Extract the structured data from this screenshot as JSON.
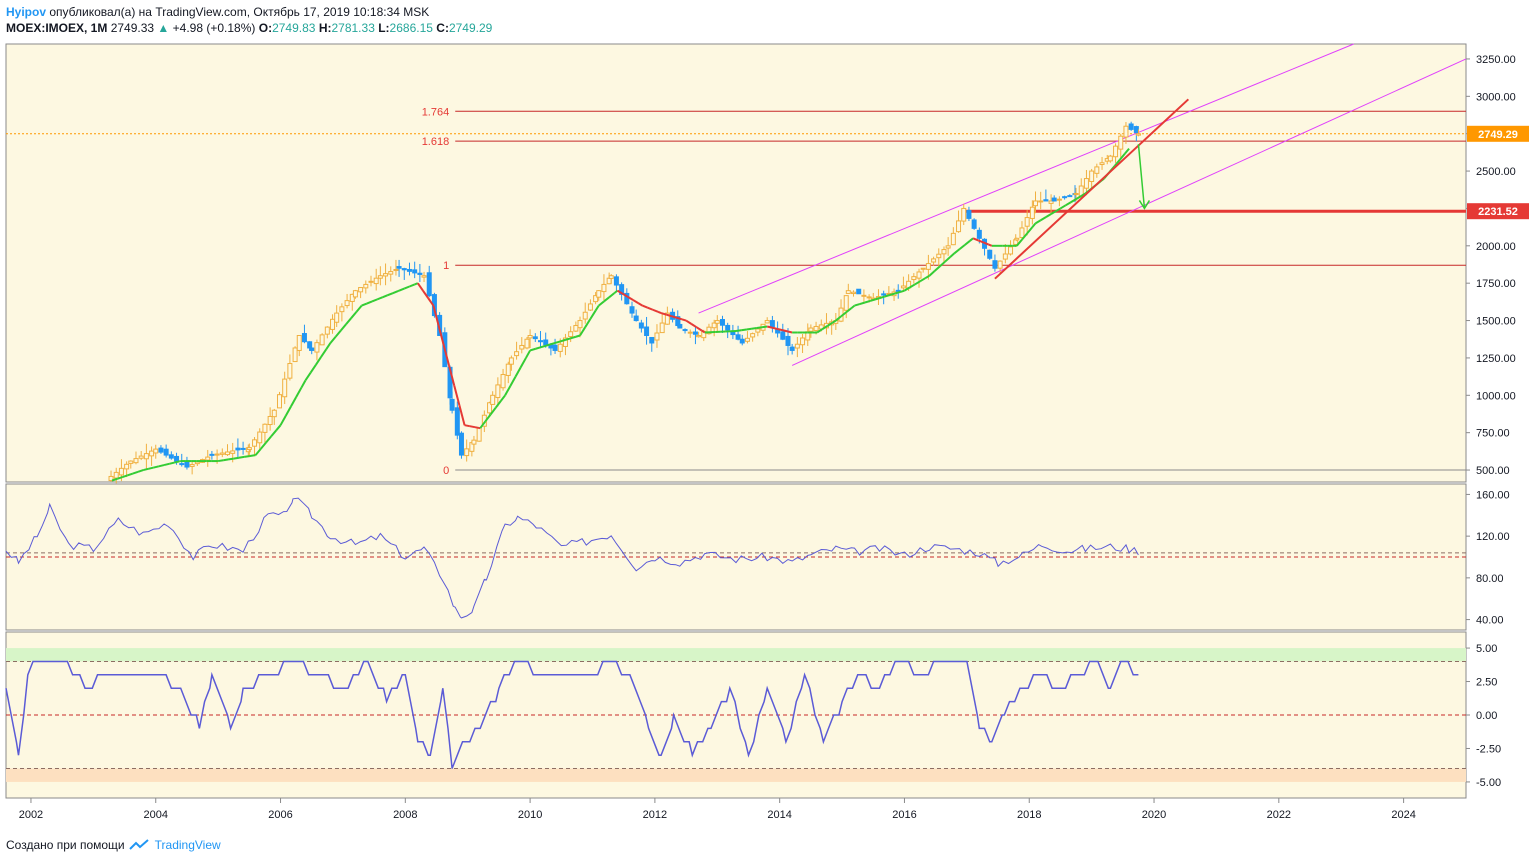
{
  "header": {
    "author": "Hyipov",
    "published_text": "опубликовал(а) на TradingView.com, Октябрь 17, 2019 10:18:34 MSK",
    "symbol": "MOEX:IMOEX, 1M",
    "last": "2749.33",
    "change": "+4.98 (+0.18%)",
    "o_label": "O:",
    "o_value": "2749.83",
    "h_label": "H:",
    "h_value": "2781.33",
    "l_label": "L:",
    "l_value": "2686.15",
    "c_label": "C:",
    "c_value": "2749.29"
  },
  "footer": {
    "created_with": "Создано при помощи",
    "brand": "TradingView"
  },
  "colors": {
    "panel_bg": "#fdf8e1",
    "bull": "#f0b040",
    "bear": "#2196f3",
    "ma_green": "#33cc33",
    "ma_red": "#e53935",
    "fib": "#c62828",
    "channel": "#e040fb",
    "indicator": "#5b5bd6",
    "price_tag": "#ff9800",
    "level_tag": "#e53935"
  },
  "chart_data": [
    {
      "type": "candlestick",
      "panel": "price",
      "x_range": [
        2001.6,
        2025.0
      ],
      "ylim": [
        420,
        3350
      ],
      "y_ticks": [
        500,
        750,
        1000,
        1250,
        1500,
        1750,
        2000,
        2250,
        2500,
        2750,
        3000,
        3250
      ],
      "y_tick_labels": [
        "500.00",
        "750.00",
        "1000.00",
        "1250.00",
        "1500.00",
        "1750.00",
        "2000.00",
        "2250.00",
        "2500.00",
        "2750.00",
        "3000.00",
        "3250.00"
      ],
      "x_ticks": [
        2002,
        2004,
        2006,
        2008,
        2010,
        2012,
        2014,
        2016,
        2018,
        2020,
        2022,
        2024
      ],
      "x_tick_labels": [
        "2002",
        "2004",
        "2006",
        "2008",
        "2010",
        "2012",
        "2014",
        "2016",
        "2018",
        "2020",
        "2022",
        "2024"
      ],
      "anchors": [
        [
          2003.2,
          430
        ],
        [
          2003.6,
          560
        ],
        [
          2004.0,
          640
        ],
        [
          2004.5,
          520
        ],
        [
          2004.9,
          600
        ],
        [
          2005.5,
          650
        ],
        [
          2005.9,
          900
        ],
        [
          2006.3,
          1400
        ],
        [
          2006.5,
          1300
        ],
        [
          2006.9,
          1550
        ],
        [
          2007.2,
          1700
        ],
        [
          2007.6,
          1800
        ],
        [
          2007.9,
          1850
        ],
        [
          2008.3,
          1800
        ],
        [
          2008.55,
          1400
        ],
        [
          2008.75,
          900
        ],
        [
          2008.9,
          600
        ],
        [
          2009.1,
          700
        ],
        [
          2009.4,
          1000
        ],
        [
          2009.7,
          1250
        ],
        [
          2010.0,
          1400
        ],
        [
          2010.4,
          1300
        ],
        [
          2010.8,
          1500
        ],
        [
          2011.1,
          1700
        ],
        [
          2011.3,
          1800
        ],
        [
          2011.7,
          1500
        ],
        [
          2011.95,
          1350
        ],
        [
          2012.2,
          1550
        ],
        [
          2012.4,
          1450
        ],
        [
          2012.7,
          1400
        ],
        [
          2013.0,
          1500
        ],
        [
          2013.4,
          1350
        ],
        [
          2013.8,
          1500
        ],
        [
          2014.2,
          1300
        ],
        [
          2014.5,
          1450
        ],
        [
          2014.9,
          1500
        ],
        [
          2015.1,
          1700
        ],
        [
          2015.5,
          1650
        ],
        [
          2015.9,
          1700
        ],
        [
          2016.3,
          1850
        ],
        [
          2016.7,
          2000
        ],
        [
          2016.95,
          2250
        ],
        [
          2017.2,
          2050
        ],
        [
          2017.45,
          1850
        ],
        [
          2017.8,
          2050
        ],
        [
          2018.1,
          2300
        ],
        [
          2018.4,
          2300
        ],
        [
          2018.75,
          2350
        ],
        [
          2019.0,
          2500
        ],
        [
          2019.3,
          2600
        ],
        [
          2019.55,
          2800
        ],
        [
          2019.75,
          2749
        ]
      ],
      "moving_average": [
        [
          2003.3,
          430
        ],
        [
          2003.8,
          500
        ],
        [
          2004.4,
          560
        ],
        [
          2005.0,
          560
        ],
        [
          2005.6,
          600
        ],
        [
          2006.0,
          800
        ],
        [
          2006.4,
          1100
        ],
        [
          2006.8,
          1350
        ],
        [
          2007.3,
          1600
        ],
        [
          2007.9,
          1700
        ],
        [
          2008.2,
          1750
        ],
        [
          2008.45,
          1600
        ],
        [
          2008.7,
          1200
        ],
        [
          2008.95,
          800
        ],
        [
          2009.2,
          780
        ],
        [
          2009.6,
          1000
        ],
        [
          2010.0,
          1300
        ],
        [
          2010.4,
          1350
        ],
        [
          2010.8,
          1400
        ],
        [
          2011.1,
          1600
        ],
        [
          2011.4,
          1700
        ],
        [
          2011.8,
          1600
        ],
        [
          2012.1,
          1550
        ],
        [
          2012.5,
          1500
        ],
        [
          2012.8,
          1420
        ],
        [
          2013.3,
          1430
        ],
        [
          2013.8,
          1460
        ],
        [
          2014.2,
          1420
        ],
        [
          2014.6,
          1420
        ],
        [
          2014.9,
          1500
        ],
        [
          2015.2,
          1600
        ],
        [
          2015.6,
          1650
        ],
        [
          2016.0,
          1700
        ],
        [
          2016.4,
          1800
        ],
        [
          2016.8,
          1950
        ],
        [
          2017.1,
          2050
        ],
        [
          2017.4,
          2000
        ],
        [
          2017.8,
          2000
        ],
        [
          2018.1,
          2150
        ],
        [
          2018.5,
          2250
        ],
        [
          2018.9,
          2350
        ],
        [
          2019.2,
          2450
        ],
        [
          2019.6,
          2650
        ]
      ],
      "fib_levels": [
        {
          "label": "0",
          "value": 500
        },
        {
          "label": "1",
          "value": 1870
        },
        {
          "label": "1.618",
          "value": 2700
        },
        {
          "label": "1.764",
          "value": 2900
        }
      ],
      "horizontal_level": {
        "value": 2231.52,
        "label": "2231.52"
      },
      "last_price": {
        "value": 2749.29,
        "label": "2749.29"
      }
    },
    {
      "type": "line",
      "panel": "oscillator_1",
      "ylim": [
        30,
        170
      ],
      "y_ticks": [
        40,
        80,
        120,
        160
      ],
      "y_tick_labels": [
        "40.00",
        "80.00",
        "120.00",
        "160.00"
      ],
      "dashed_levels": [
        100,
        104
      ],
      "anchors": [
        [
          2001.6,
          107
        ],
        [
          2001.8,
          95
        ],
        [
          2002.1,
          120
        ],
        [
          2002.3,
          147
        ],
        [
          2002.6,
          112
        ],
        [
          2003.0,
          108
        ],
        [
          2003.4,
          135
        ],
        [
          2003.8,
          122
        ],
        [
          2004.2,
          133
        ],
        [
          2004.6,
          100
        ],
        [
          2004.9,
          112
        ],
        [
          2005.4,
          106
        ],
        [
          2005.8,
          140
        ],
        [
          2006.1,
          140
        ],
        [
          2006.2,
          158
        ],
        [
          2006.5,
          140
        ],
        [
          2006.8,
          120
        ],
        [
          2007.2,
          112
        ],
        [
          2007.6,
          120
        ],
        [
          2008.0,
          100
        ],
        [
          2008.3,
          108
        ],
        [
          2008.6,
          80
        ],
        [
          2008.8,
          50
        ],
        [
          2008.9,
          43
        ],
        [
          2009.1,
          50
        ],
        [
          2009.3,
          80
        ],
        [
          2009.6,
          130
        ],
        [
          2009.8,
          138
        ],
        [
          2010.1,
          130
        ],
        [
          2010.5,
          110
        ],
        [
          2010.9,
          115
        ],
        [
          2011.3,
          122
        ],
        [
          2011.7,
          90
        ],
        [
          2012.0,
          100
        ],
        [
          2012.4,
          95
        ],
        [
          2012.8,
          103
        ],
        [
          2013.3,
          98
        ],
        [
          2013.8,
          100
        ],
        [
          2014.2,
          95
        ],
        [
          2014.5,
          102
        ],
        [
          2014.9,
          108
        ],
        [
          2015.2,
          105
        ],
        [
          2015.6,
          108
        ],
        [
          2016.0,
          102
        ],
        [
          2016.4,
          110
        ],
        [
          2016.8,
          108
        ],
        [
          2017.2,
          104
        ],
        [
          2017.5,
          94
        ],
        [
          2017.9,
          102
        ],
        [
          2018.2,
          112
        ],
        [
          2018.6,
          106
        ],
        [
          2018.9,
          108
        ],
        [
          2019.3,
          110
        ],
        [
          2019.6,
          108
        ],
        [
          2019.75,
          106
        ]
      ]
    },
    {
      "type": "line",
      "panel": "oscillator_2",
      "ylim": [
        -6.2,
        6.2
      ],
      "y_ticks": [
        -5,
        -2.5,
        0,
        2.5,
        5
      ],
      "y_tick_labels": [
        "-5.00",
        "-2.50",
        "0.00",
        "2.50",
        "5.00"
      ],
      "dashed_levels": [
        4,
        0,
        -4
      ],
      "anchors": [
        [
          2001.6,
          2
        ],
        [
          2001.8,
          -3
        ],
        [
          2001.95,
          3
        ],
        [
          2002.1,
          4
        ],
        [
          2002.5,
          4
        ],
        [
          2002.7,
          3
        ],
        [
          2002.9,
          2
        ],
        [
          2003.2,
          3
        ],
        [
          2003.6,
          3
        ],
        [
          2004.0,
          3
        ],
        [
          2004.4,
          2
        ],
        [
          2004.7,
          -1
        ],
        [
          2004.9,
          3
        ],
        [
          2005.2,
          -1
        ],
        [
          2005.4,
          2
        ],
        [
          2005.8,
          3
        ],
        [
          2006.2,
          4
        ],
        [
          2006.6,
          3
        ],
        [
          2007.0,
          2
        ],
        [
          2007.4,
          4
        ],
        [
          2007.7,
          1
        ],
        [
          2008.0,
          3
        ],
        [
          2008.2,
          -2
        ],
        [
          2008.4,
          -3
        ],
        [
          2008.6,
          2
        ],
        [
          2008.75,
          -4
        ],
        [
          2008.95,
          -2
        ],
        [
          2009.2,
          -1
        ],
        [
          2009.5,
          2
        ],
        [
          2009.8,
          4
        ],
        [
          2010.2,
          3
        ],
        [
          2010.6,
          3
        ],
        [
          2011.0,
          3
        ],
        [
          2011.3,
          4
        ],
        [
          2011.6,
          3
        ],
        [
          2011.9,
          -1
        ],
        [
          2012.1,
          -3
        ],
        [
          2012.3,
          0
        ],
        [
          2012.6,
          -3
        ],
        [
          2012.9,
          -1
        ],
        [
          2013.2,
          2
        ],
        [
          2013.5,
          -3
        ],
        [
          2013.8,
          2
        ],
        [
          2014.1,
          -2
        ],
        [
          2014.4,
          3
        ],
        [
          2014.7,
          -2
        ],
        [
          2015.0,
          1
        ],
        [
          2015.3,
          3
        ],
        [
          2015.6,
          2
        ],
        [
          2015.9,
          4
        ],
        [
          2016.3,
          3
        ],
        [
          2016.6,
          4
        ],
        [
          2017.0,
          4
        ],
        [
          2017.2,
          -1
        ],
        [
          2017.4,
          -2
        ],
        [
          2017.6,
          0
        ],
        [
          2017.9,
          2
        ],
        [
          2018.2,
          3
        ],
        [
          2018.5,
          2
        ],
        [
          2018.8,
          3
        ],
        [
          2019.1,
          4
        ],
        [
          2019.3,
          2
        ],
        [
          2019.5,
          4
        ],
        [
          2019.75,
          3
        ]
      ]
    }
  ]
}
